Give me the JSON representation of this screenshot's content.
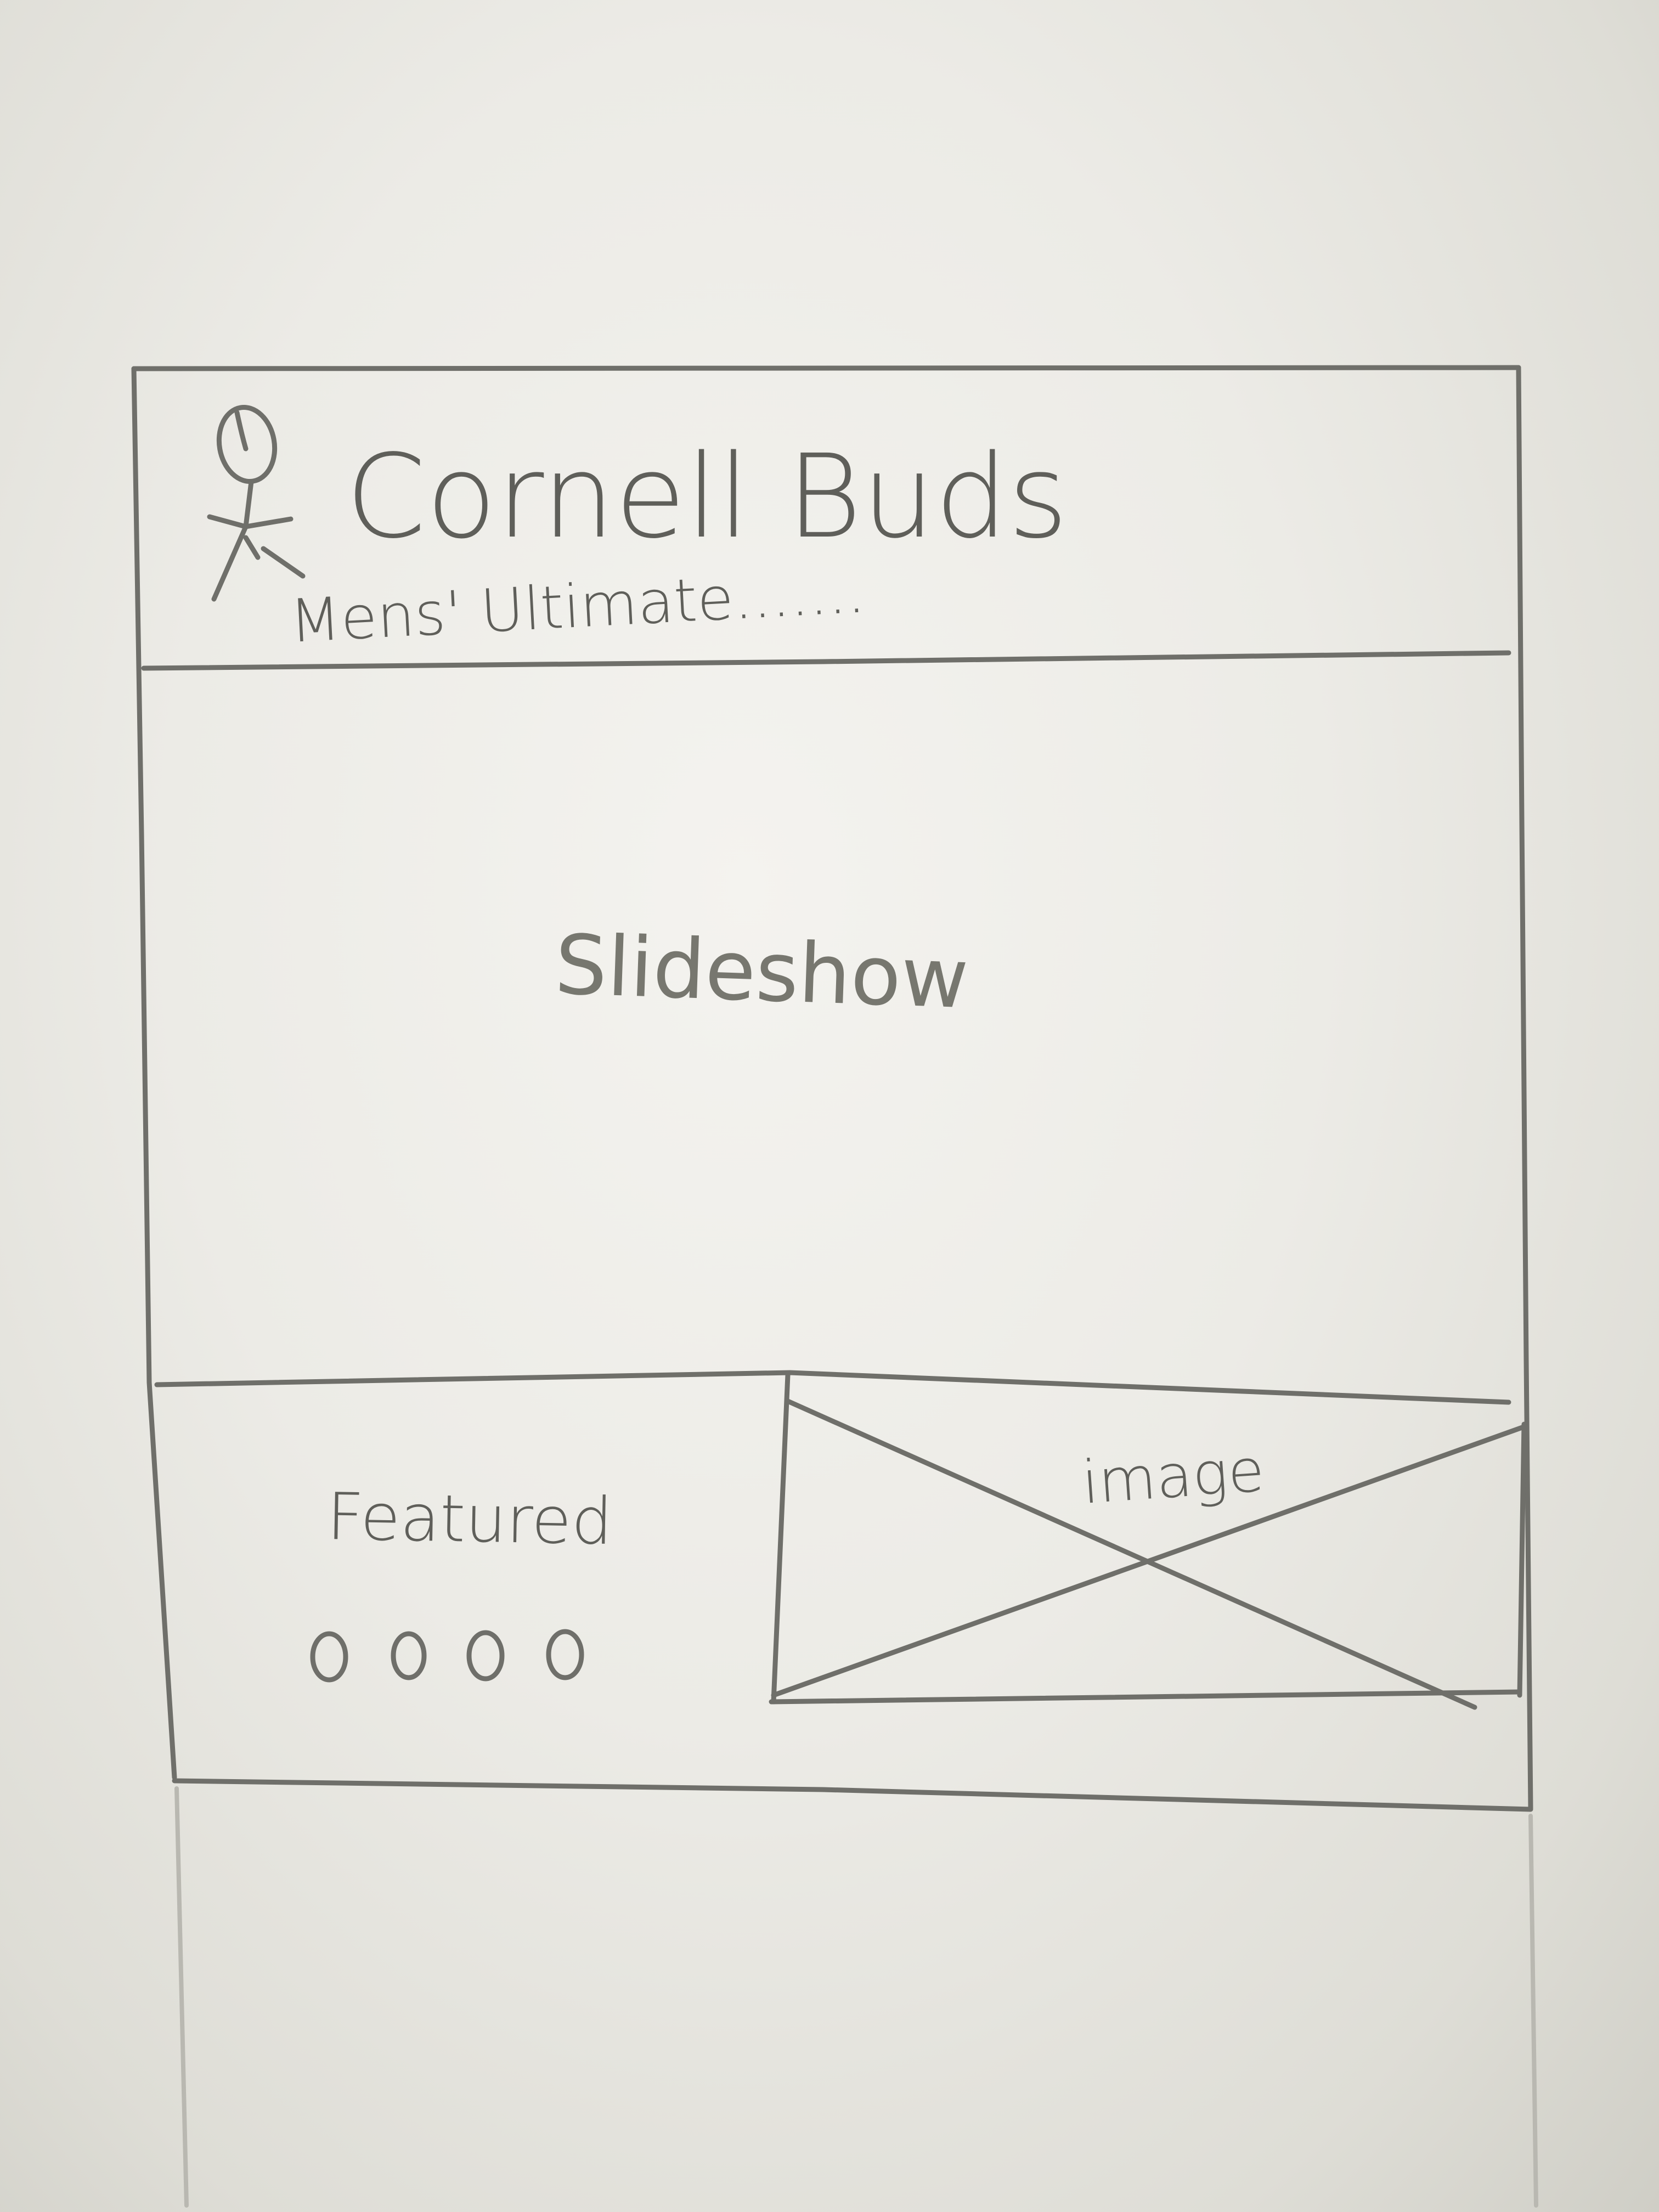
{
  "header": {
    "title": "Cornell Buds",
    "subtitle": "Mens' Ultimate......."
  },
  "hero": {
    "label": "Slideshow"
  },
  "featured": {
    "label": "Featured",
    "dots": 4,
    "image_label": "image"
  },
  "icons": {
    "logo": "stick-figure-frisbee-icon",
    "image_placeholder": "crossed-box-image-icon"
  }
}
